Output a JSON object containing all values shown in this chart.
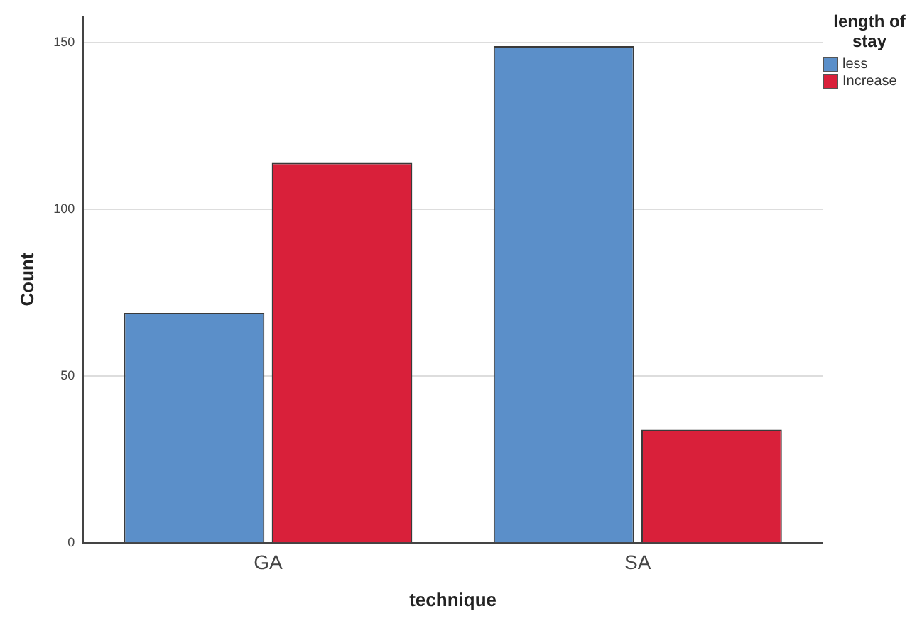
{
  "chart_data": {
    "type": "bar",
    "xlabel": "technique",
    "ylabel": "Count",
    "legend_title": "length of stay",
    "categories": [
      "GA",
      "SA"
    ],
    "series": [
      {
        "name": "less",
        "color": "#5b8fc9",
        "values": [
          69,
          149
        ]
      },
      {
        "name": "Increase",
        "color": "#d9203a",
        "values": [
          114,
          34
        ]
      }
    ],
    "ylim": [
      0,
      158
    ],
    "yticks": [
      0,
      50,
      100,
      150
    ],
    "grid": "y",
    "legend": "top right"
  }
}
